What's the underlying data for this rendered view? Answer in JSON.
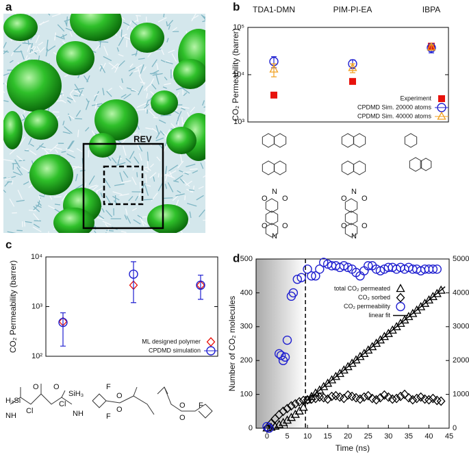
{
  "panel_labels": [
    "a",
    "b",
    "c",
    "d"
  ],
  "image_a": {
    "annotation": "REV"
  },
  "structures_b": [
    [
      "O",
      "O",
      "N",
      "O",
      "O",
      "N"
    ],
    [
      "O",
      "O",
      "N",
      "O",
      "O",
      "N"
    ]
  ],
  "structures_c": [
    [
      "H₃Si",
      "NH",
      "Cl",
      "O",
      "O",
      "Cl",
      "SiH₃",
      "NH"
    ],
    [
      "O",
      "O",
      "F",
      "F"
    ],
    [
      "O",
      "O",
      "F"
    ]
  ],
  "chart_data": [
    {
      "type": "scatter",
      "categories": [
        "TDA1-DMN",
        "PIM-PI-EA",
        "IBPA"
      ],
      "ylabel": "CO₂ Permeability (barrer)",
      "log": true,
      "ylim": [
        1000,
        100000
      ],
      "yticks": [
        {
          "value": 1000,
          "label": "10³"
        },
        {
          "value": 10000,
          "label": "10⁴"
        },
        {
          "value": 100000,
          "label": "10⁵"
        }
      ],
      "legend": "lower right",
      "series": [
        {
          "name": "Experiment",
          "color": "#e8120c",
          "marker": "square",
          "values": [
            3700,
            7200,
            40000
          ]
        },
        {
          "name": "CPDMD Sim. 20000 atoms",
          "color": "#1f1fd0",
          "marker": "circle",
          "values": [
            19000,
            17000,
            37000
          ],
          "errors": [
            5000,
            3500,
            8000
          ]
        },
        {
          "name": "CPDMD Sim. 40000 atoms",
          "color": "#f0a020",
          "marker": "triangle",
          "values": [
            13000,
            14000,
            38000
          ],
          "errors": [
            4000,
            3000,
            5000
          ]
        }
      ]
    },
    {
      "type": "scatter",
      "categories": [
        null,
        null,
        null
      ],
      "ylabel": "CO₂ Permeability (barrer)",
      "log": true,
      "ylim": [
        100,
        10000
      ],
      "yticks": [
        {
          "value": 100,
          "label": "10²"
        },
        {
          "value": 1000,
          "label": "10³"
        },
        {
          "value": 10000,
          "label": "10⁴"
        }
      ],
      "legend": "lower right",
      "series": [
        {
          "name": "ML designed polymer",
          "color": "#e8120c",
          "marker": "diamond",
          "values": [
            500,
            2700,
            2700
          ]
        },
        {
          "name": "CPDMD simulation",
          "color": "#1f1fd0",
          "marker": "circle",
          "values": [
            480,
            4500,
            2700
          ],
          "errors_low": [
            320,
            3300,
            1300
          ],
          "errors_high": [
            270,
            3500,
            1600
          ]
        }
      ]
    },
    {
      "type": "scatter",
      "xlabel": "Time (ns)",
      "ylabel": "Number of CO₂ molecules",
      "y2label": "CO₂ permeability (barrer)",
      "xlim": [
        -2.7,
        45
      ],
      "xticks": [
        0,
        5,
        10,
        15,
        20,
        25,
        30,
        35,
        40,
        45
      ],
      "ylim": [
        0,
        500
      ],
      "yticks": [
        0,
        100,
        200,
        300,
        400,
        500
      ],
      "y2lim": [
        0,
        5000
      ],
      "y2ticks": [
        0,
        1000,
        2000,
        3000,
        4000,
        5000
      ],
      "y2color": "#1f1fd0",
      "vline": 9.5,
      "legend": "center",
      "series": [
        {
          "name": "total CO₂ permeated",
          "color": "#000000",
          "marker": "triangle",
          "x": [
            0,
            1,
            2,
            3,
            4,
            5,
            6,
            7,
            8,
            9,
            10,
            11,
            12,
            13,
            14,
            15,
            16,
            17,
            18,
            19,
            20,
            21,
            22,
            23,
            24,
            25,
            26,
            27,
            28,
            29,
            30,
            31,
            32,
            33,
            34,
            35,
            36,
            37,
            38,
            39,
            40,
            41,
            42,
            43
          ],
          "values": [
            0,
            2,
            5,
            10,
            16,
            23,
            31,
            40,
            50,
            61,
            83,
            93,
            103,
            112,
            122,
            132,
            142,
            152,
            161,
            171,
            181,
            191,
            201,
            211,
            220,
            230,
            240,
            250,
            260,
            270,
            279,
            289,
            299,
            309,
            319,
            329,
            338,
            348,
            358,
            368,
            378,
            388,
            397,
            407
          ]
        },
        {
          "name": "CO₂ sorbed",
          "color": "#000000",
          "marker": "diamond",
          "x": [
            0,
            1,
            2,
            3,
            4,
            5,
            6,
            7,
            8,
            9,
            10,
            11,
            12,
            13,
            14,
            15,
            16,
            17,
            18,
            19,
            20,
            21,
            22,
            23,
            24,
            25,
            26,
            27,
            28,
            29,
            30,
            31,
            32,
            33,
            34,
            35,
            36,
            37,
            38,
            39,
            40,
            41,
            42,
            43
          ],
          "values": [
            0,
            14,
            28,
            40,
            50,
            58,
            66,
            72,
            78,
            82,
            84,
            86,
            88,
            92,
            90,
            86,
            94,
            96,
            92,
            88,
            98,
            94,
            90,
            86,
            92,
            96,
            88,
            84,
            90,
            98,
            92,
            86,
            88,
            94,
            100,
            90,
            84,
            88,
            92,
            86,
            84,
            88,
            82,
            80
          ]
        },
        {
          "name": "CO₂ permeability",
          "color": "#1f1fd0",
          "marker": "circle",
          "axis": "y2",
          "x": [
            0,
            0.5,
            3,
            3.5,
            4,
            4.5,
            5,
            6,
            6.5,
            7.5,
            8.5,
            10,
            11,
            12,
            13,
            14,
            15,
            16,
            17,
            18,
            19,
            20,
            21,
            22,
            23,
            24,
            25,
            26,
            27,
            28,
            29,
            30,
            31,
            32,
            33,
            34,
            35,
            36,
            37,
            38,
            39,
            40,
            41,
            42
          ],
          "values": [
            50,
            0,
            2200,
            2150,
            2000,
            2100,
            2600,
            3900,
            4000,
            4400,
            4450,
            4700,
            4500,
            4500,
            4700,
            4900,
            4850,
            4800,
            4800,
            4750,
            4800,
            4750,
            4700,
            4600,
            4500,
            4650,
            4800,
            4800,
            4700,
            4650,
            4700,
            4750,
            4750,
            4700,
            4750,
            4700,
            4750,
            4700,
            4700,
            4650,
            4700,
            4700,
            4700,
            4700
          ]
        },
        {
          "name": "linear fit",
          "color": "#000000",
          "marker": "line",
          "x": [
            9.5,
            44
          ],
          "values": [
            78,
            418
          ]
        }
      ]
    }
  ]
}
